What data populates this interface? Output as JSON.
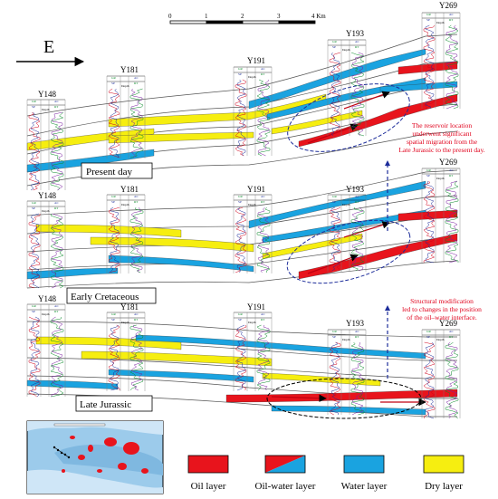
{
  "direction": "E",
  "scale_bar": {
    "ticks": [
      "0",
      "1",
      "2",
      "3",
      "4 Km"
    ]
  },
  "wells": [
    "Y148",
    "Y181",
    "Y191",
    "Y193",
    "Y269"
  ],
  "log_labels": {
    "left_top": "GR",
    "left_bottom": "SP",
    "right_top": "AC",
    "right_bottom": "RT",
    "depth": "Depth",
    "strata": "Strata"
  },
  "strata_labels": [
    "Chang6",
    "Chang7",
    "Chang8",
    "Chang9",
    "Chang10"
  ],
  "stages": [
    "Present day",
    "Early Cretaceous",
    "Late Jurassic"
  ],
  "annotations": [
    [
      "The reservoir location",
      "underwent significant",
      "spatial migration from the",
      "Late Jurassic to the present day."
    ],
    [
      "Structural modification",
      "led to changes in the position",
      "of the oil–water interface."
    ]
  ],
  "legend": [
    {
      "label": "Oil layer",
      "color": "#e8141c"
    },
    {
      "label": "Oil-water layer",
      "color": "#e8141c",
      "color2": "#1aa3e0"
    },
    {
      "label": "Water layer",
      "color": "#1aa3e0"
    },
    {
      "label": "Dry layer",
      "color": "#f6ee10"
    }
  ],
  "colors": {
    "oil": "#e8141c",
    "water": "#1aa3e0",
    "dry": "#f6ee10",
    "annotation": "#e0001b",
    "arrow": "#1c2c9a",
    "map_bg": "#9ccbeb"
  }
}
